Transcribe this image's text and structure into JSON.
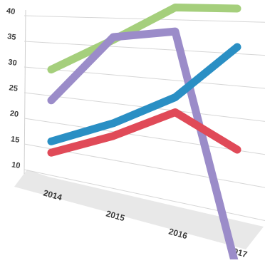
{
  "chart_data": {
    "type": "line",
    "title": "",
    "xlabel": "",
    "ylabel": "",
    "categories": [
      "2014",
      "2015",
      "2016",
      "2017"
    ],
    "y_ticks": [
      "10",
      "15",
      "20",
      "25",
      "30",
      "35",
      "40"
    ],
    "ylim": [
      10,
      40
    ],
    "grid": true,
    "legend": "none",
    "perspective": "3d-tilted",
    "series": [
      {
        "color": "#a5cf7c",
        "values": [
          29.5,
          36,
          42,
          42
        ]
      },
      {
        "color": "#9b8cc9",
        "values": [
          23.5,
          36.5,
          38,
          1
        ]
      },
      {
        "color": "#2a8fc4",
        "values": [
          15.5,
          21,
          27,
          36
        ]
      },
      {
        "color": "#e04a58",
        "values": [
          13.3,
          18.7,
          24.5,
          20
        ]
      }
    ]
  }
}
